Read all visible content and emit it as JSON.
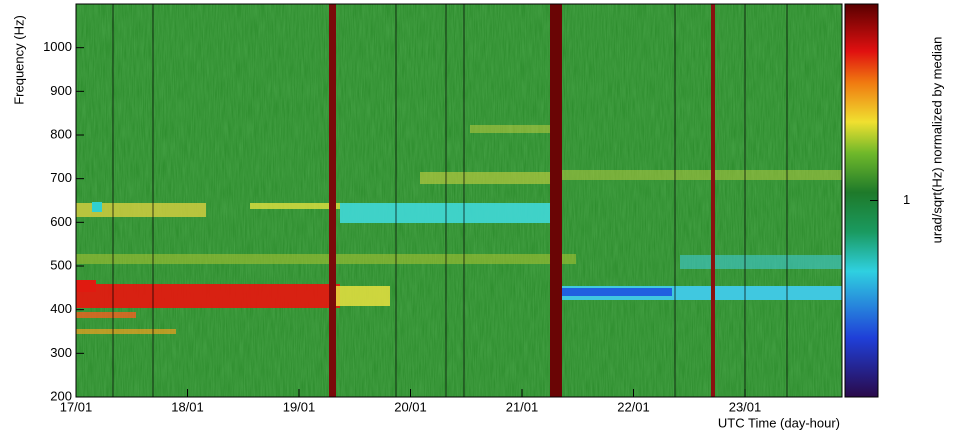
{
  "chart_data": {
    "type": "heatmap",
    "y_label": "Frequency (Hz)",
    "x_label": "UTC Time (day-hour)",
    "colorbar_label": "urad/sqrt(Hz) normalized by median",
    "xlim": [
      17,
      23.87
    ],
    "xticks": [
      {
        "value": 17,
        "label": "17/01"
      },
      {
        "value": 18,
        "label": "18/01"
      },
      {
        "value": 19,
        "label": "19/01"
      },
      {
        "value": 20,
        "label": "20/01"
      },
      {
        "value": 21,
        "label": "21/01"
      },
      {
        "value": 22,
        "label": "22/01"
      },
      {
        "value": 23,
        "label": "23/01"
      }
    ],
    "ylim": [
      200,
      1100
    ],
    "yticks": [
      200,
      300,
      400,
      500,
      600,
      700,
      800,
      900,
      1000
    ],
    "colorbar_lim": [
      0.1,
      10
    ],
    "colorbar_log": true,
    "colorbar_ticks": [
      1
    ]
  }
}
